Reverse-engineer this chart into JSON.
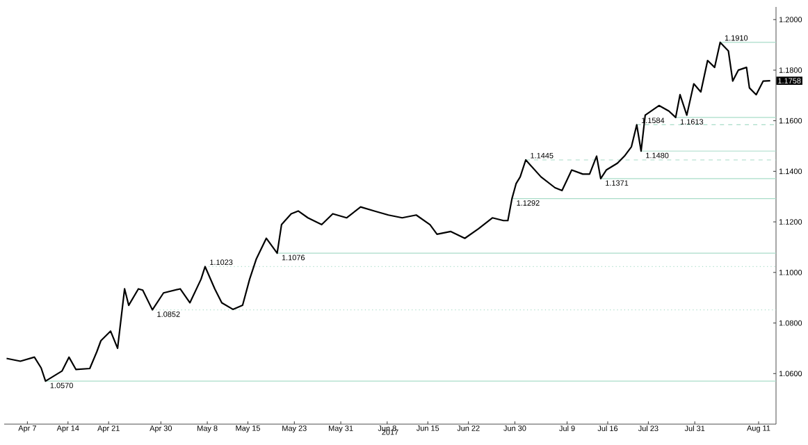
{
  "chart_data": {
    "type": "line",
    "xlabel": "2017",
    "x": [
      "2017-04-03T10:00",
      "2017-04-05T19:00",
      "2017-04-08T05:00",
      "2017-04-09T09:00",
      "2017-04-10T03:00",
      "2017-04-12T23:00",
      "2017-04-14T04:00",
      "2017-04-15T09:00",
      "2017-04-17T18:00",
      "2017-04-18T23:00",
      "2017-04-19T16:00",
      "2017-04-21T08:00",
      "2017-04-22T13:00",
      "2017-04-23T18:00",
      "2017-04-24T11:00",
      "2017-04-26T03:00",
      "2017-04-26T21:00",
      "2017-04-28T13:00",
      "2017-04-30T11:00",
      "2017-05-03T08:00",
      "2017-05-05T00:00",
      "2017-05-06T22:00",
      "2017-05-07T15:00",
      "2017-05-09T07:00",
      "2017-05-10T12:00",
      "2017-05-12T10:00",
      "2017-05-14T02:00",
      "2017-05-15T07:00",
      "2017-05-16T11:00",
      "2017-05-18T04:00",
      "2017-05-20T01:00",
      "2017-05-20T19:00",
      "2017-05-22T11:00",
      "2017-05-23T16:00",
      "2017-05-25T08:00",
      "2017-05-27T17:00",
      "2017-05-29T15:00",
      "2017-06-01T00:00",
      "2017-06-03T10:00",
      "2017-06-05T19:00",
      "2017-06-08T05:00",
      "2017-06-10T14:00",
      "2017-06-13T00:00",
      "2017-06-15T09:00",
      "2017-06-16T14:00",
      "2017-06-18T23:00",
      "2017-06-21T09:00",
      "2017-06-23T18:00",
      "2017-06-26T03:00",
      "2017-06-28T01:00",
      "2017-06-28T19:00",
      "2017-06-29T12:00",
      "2017-06-30T05:00",
      "2017-06-30T22:00",
      "2017-07-01T21:00",
      "2017-07-04T12:00",
      "2017-07-06T22:00",
      "2017-07-08T03:00",
      "2017-07-09T19:00",
      "2017-07-11T17:00",
      "2017-07-12T21:00",
      "2017-07-14T02:00",
      "2017-07-14T19:00",
      "2017-07-15T18:00",
      "2017-07-17T16:00",
      "2017-07-18T21:00",
      "2017-07-20T02:00",
      "2017-07-21T00:00",
      "2017-07-21T18:00",
      "2017-07-22T11:00",
      "2017-07-24T20:00",
      "2017-07-26T13:00",
      "2017-07-27T17:00",
      "2017-07-28T11:00",
      "2017-07-29T15:00",
      "2017-07-30T20:00",
      "2017-08-01T01:00",
      "2017-08-02T05:00",
      "2017-08-03T10:00",
      "2017-08-04T09:00",
      "2017-08-05T19:00",
      "2017-08-06T13:00",
      "2017-08-07T12:00",
      "2017-08-08T22:00",
      "2017-08-09T10:00",
      "2017-08-10T14:00",
      "2017-08-11T19:00",
      "2017-08-13T00:00"
    ],
    "series": [
      {
        "color": "#000000",
        "values": [
          1.066,
          1.0649,
          1.0665,
          1.0622,
          1.057,
          1.061,
          1.0665,
          1.0616,
          1.062,
          1.0686,
          1.073,
          1.0768,
          1.07,
          1.0935,
          1.087,
          1.0935,
          1.093,
          1.0852,
          1.0919,
          1.0935,
          1.088,
          1.0973,
          1.1023,
          1.0935,
          1.088,
          1.0854,
          1.087,
          1.0973,
          1.1054,
          1.1135,
          1.1076,
          1.1189,
          1.1232,
          1.1243,
          1.1216,
          1.1189,
          1.1232,
          1.1216,
          1.1259,
          1.1243,
          1.1227,
          1.1216,
          1.1227,
          1.1189,
          1.1151,
          1.1162,
          1.1135,
          1.1173,
          1.1216,
          1.1205,
          1.1205,
          1.1292,
          1.1351,
          1.1378,
          1.1445,
          1.1378,
          1.1335,
          1.1324,
          1.1405,
          1.1389,
          1.1389,
          1.146,
          1.1371,
          1.1405,
          1.1432,
          1.146,
          1.1497,
          1.1584,
          1.148,
          1.1622,
          1.166,
          1.1638,
          1.1613,
          1.1703,
          1.1622,
          1.1746,
          1.1714,
          1.1838,
          1.1811,
          1.191,
          1.1876,
          1.1757,
          1.18,
          1.1811,
          1.173,
          1.1703,
          1.1757,
          1.1758
        ]
      }
    ],
    "xlim": [
      "2017-04-03",
      "2017-08-14"
    ],
    "xticks": [
      {
        "value": "2017-04-07",
        "label": "Apr 7"
      },
      {
        "value": "2017-04-14",
        "label": "Apr 14"
      },
      {
        "value": "2017-04-21",
        "label": "Apr 21"
      },
      {
        "value": "2017-04-30",
        "label": "Apr 30"
      },
      {
        "value": "2017-05-08",
        "label": "May 8"
      },
      {
        "value": "2017-05-15",
        "label": "May 15"
      },
      {
        "value": "2017-05-23",
        "label": "May 23"
      },
      {
        "value": "2017-05-31",
        "label": "May 31"
      },
      {
        "value": "2017-06-08",
        "label": "Jun 8"
      },
      {
        "value": "2017-06-15",
        "label": "Jun 15"
      },
      {
        "value": "2017-06-22",
        "label": "Jun 22"
      },
      {
        "value": "2017-06-30",
        "label": "Jun 30"
      },
      {
        "value": "2017-07-09",
        "label": "Jul 9"
      },
      {
        "value": "2017-07-16",
        "label": "Jul 16"
      },
      {
        "value": "2017-07-23",
        "label": "Jul 23"
      },
      {
        "value": "2017-07-31",
        "label": "Jul 31"
      },
      {
        "value": "2017-08-11",
        "label": "Aug 11"
      }
    ],
    "ylim": [
      1.04,
      1.205
    ],
    "yticks": [
      {
        "value": 1.06,
        "label": "1.0600"
      },
      {
        "value": 1.08,
        "label": "1.0800"
      },
      {
        "value": 1.1,
        "label": "1.1000"
      },
      {
        "value": 1.12,
        "label": "1.1200"
      },
      {
        "value": 1.14,
        "label": "1.1400"
      },
      {
        "value": 1.16,
        "label": "1.1600"
      },
      {
        "value": 1.18,
        "label": "1.1800"
      },
      {
        "value": 1.2,
        "label": "1.2000"
      }
    ],
    "ref_lines": [
      {
        "axis": "y",
        "value": 1.057,
        "label": "1.0570",
        "color": "#a8dcc8",
        "line_style": "solid"
      },
      {
        "axis": "y",
        "value": 1.0852,
        "label": "1.0852",
        "color": "#a8dcc8",
        "line_style": "dotted"
      },
      {
        "axis": "y",
        "value": 1.1023,
        "label": "1.1023",
        "color": "#a8dcc8",
        "line_style": "dotted"
      },
      {
        "axis": "y",
        "value": 1.1076,
        "label": "1.1076",
        "color": "#a8dcc8",
        "line_style": "solid"
      },
      {
        "axis": "y",
        "value": 1.1292,
        "label": "1.1292",
        "color": "#a8dcc8",
        "line_style": "solid"
      },
      {
        "axis": "y",
        "value": 1.1445,
        "label": "1.1445",
        "color": "#a8dcc8",
        "line_style": "dashed"
      },
      {
        "axis": "y",
        "value": 1.1371,
        "label": "1.1371",
        "color": "#a8dcc8",
        "line_style": "solid"
      },
      {
        "axis": "y",
        "value": 1.1584,
        "label": "1.1584",
        "color": "#a8dcc8",
        "line_style": "dashed"
      },
      {
        "axis": "y",
        "value": 1.148,
        "label": "1.1480",
        "color": "#a8dcc8",
        "line_style": "solid"
      },
      {
        "axis": "y",
        "value": 1.1613,
        "label": "1.1613",
        "color": "#a8dcc8",
        "line_style": "solid"
      },
      {
        "axis": "y",
        "value": 1.191,
        "label": "1.1910",
        "color": "#a8dcc8",
        "line_style": "solid"
      }
    ],
    "annotations": [
      {
        "text": "1.1758",
        "y": 1.1758
      }
    ]
  }
}
